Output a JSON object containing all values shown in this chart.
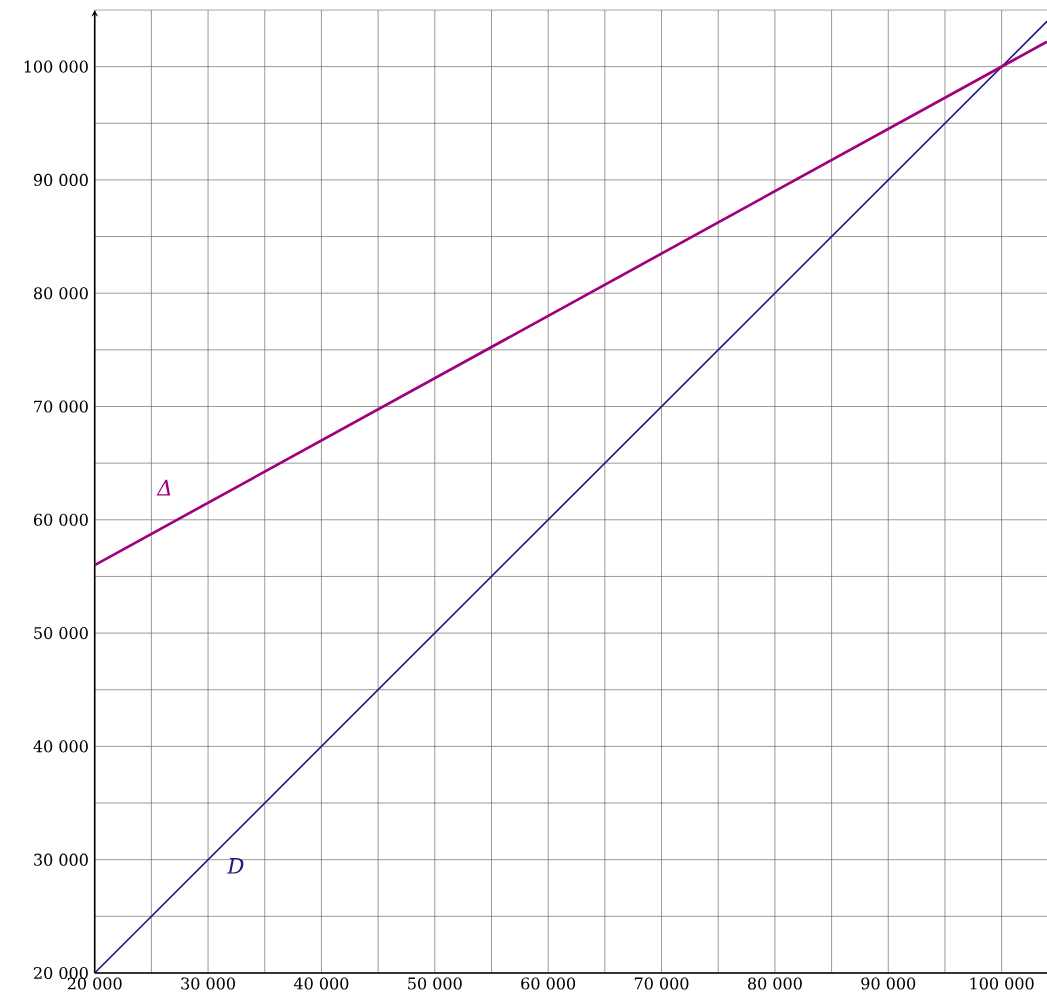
{
  "chart_data": {
    "type": "line",
    "x": [
      20000,
      104000
    ],
    "series": [
      {
        "name": "D",
        "color": "#1f1580",
        "values": [
          20000,
          104000
        ]
      },
      {
        "name": "Δ",
        "color": "#a0007e",
        "values": [
          56000,
          102200
        ]
      }
    ],
    "xlim": [
      20000,
      104000
    ],
    "ylim": [
      20000,
      105000
    ],
    "xticks": [
      {
        "value": 20000,
        "label": "20 000"
      },
      {
        "value": 25000,
        "label": null
      },
      {
        "value": 30000,
        "label": "30 000"
      },
      {
        "value": 35000,
        "label": null
      },
      {
        "value": 40000,
        "label": "40 000"
      },
      {
        "value": 45000,
        "label": null
      },
      {
        "value": 50000,
        "label": "50 000"
      },
      {
        "value": 55000,
        "label": null
      },
      {
        "value": 60000,
        "label": "60 000"
      },
      {
        "value": 65000,
        "label": null
      },
      {
        "value": 70000,
        "label": "70 000"
      },
      {
        "value": 75000,
        "label": null
      },
      {
        "value": 80000,
        "label": "80 000"
      },
      {
        "value": 85000,
        "label": null
      },
      {
        "value": 90000,
        "label": "90 000"
      },
      {
        "value": 95000,
        "label": null
      },
      {
        "value": 100000,
        "label": "100 000"
      }
    ],
    "yticks": [
      {
        "value": 20000,
        "label": "20 000"
      },
      {
        "value": 25000,
        "label": null
      },
      {
        "value": 30000,
        "label": "30 000"
      },
      {
        "value": 35000,
        "label": null
      },
      {
        "value": 40000,
        "label": "40 000"
      },
      {
        "value": 45000,
        "label": null
      },
      {
        "value": 50000,
        "label": "50 000"
      },
      {
        "value": 55000,
        "label": null
      },
      {
        "value": 60000,
        "label": "60 000"
      },
      {
        "value": 65000,
        "label": null
      },
      {
        "value": 70000,
        "label": "70 000"
      },
      {
        "value": 75000,
        "label": null
      },
      {
        "value": 80000,
        "label": "80 000"
      },
      {
        "value": 85000,
        "label": null
      },
      {
        "value": 90000,
        "label": "90 000"
      },
      {
        "value": 95000,
        "label": null
      },
      {
        "value": 100000,
        "label": "100 000"
      },
      {
        "value": 105000,
        "label": null
      }
    ],
    "grid": true
  }
}
